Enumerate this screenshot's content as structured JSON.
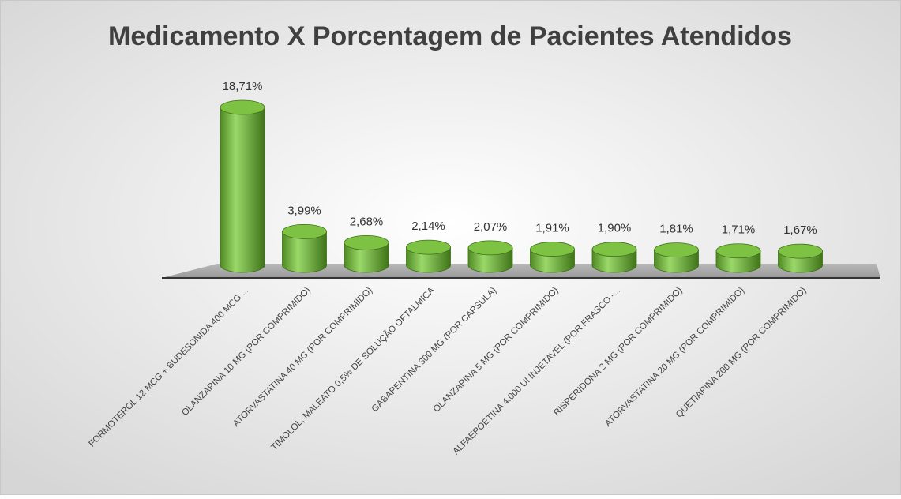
{
  "chart_data": {
    "type": "bar3d",
    "title": "Medicamento X Porcentagem de Pacientes Atendidos",
    "categories": [
      "FORMOTEROL 12 MCG + BUDESONIDA 400 MCG ...",
      "OLANZAPINA 10 MG (POR COMPRIMIDO)",
      "ATORVASTATINA 40 MG (POR COMPRIMIDO)",
      "TIMOLOL, MALEATO 0,5% DE SOLUÇÃO OFTALMICA",
      "GABAPENTINA 300 MG (POR CAPSULA)",
      "OLANZAPINA 5 MG (POR COMPRIMIDO)",
      "ALFAEPOETINA 4.000 UI INJETAVEL (POR FRASCO -...",
      "RISPERIDONA 2 MG (POR COMPRIMIDO)",
      "ATORVASTATINA 20 MG (POR COMPRIMIDO)",
      "QUETIAPINA 200 MG (POR COMPRIMIDO)"
    ],
    "values": [
      18.71,
      3.99,
      2.68,
      2.14,
      2.07,
      1.91,
      1.9,
      1.81,
      1.71,
      1.67
    ],
    "value_labels": [
      "18,71%",
      "3,99%",
      "2,68%",
      "2,14%",
      "2,07%",
      "1,91%",
      "1,90%",
      "1,81%",
      "1,71%",
      "1,67%"
    ],
    "color": "#7dc242"
  }
}
